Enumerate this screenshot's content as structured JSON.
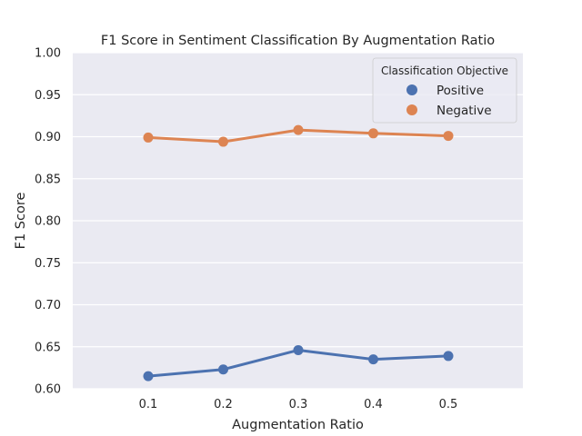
{
  "chart_data": {
    "type": "line",
    "title": "F1 Score in Sentiment Classification By Augmentation Ratio",
    "xlabel": "Augmentation Ratio",
    "ylabel": "F1 Score",
    "categories": [
      "0.1",
      "0.2",
      "0.3",
      "0.4",
      "0.5"
    ],
    "ylim": [
      0.6,
      1.0
    ],
    "yticks": [
      "0.60",
      "0.65",
      "0.70",
      "0.75",
      "0.80",
      "0.85",
      "0.90",
      "0.95",
      "1.00"
    ],
    "grid": true,
    "legend": {
      "title": "Classification Objective",
      "placement": "top-right"
    },
    "series": [
      {
        "name": "Positive",
        "color": "#4c72b0",
        "values": [
          0.615,
          0.623,
          0.646,
          0.635,
          0.639
        ]
      },
      {
        "name": "Negative",
        "color": "#dd8452",
        "values": [
          0.899,
          0.894,
          0.908,
          0.904,
          0.901
        ]
      }
    ]
  }
}
